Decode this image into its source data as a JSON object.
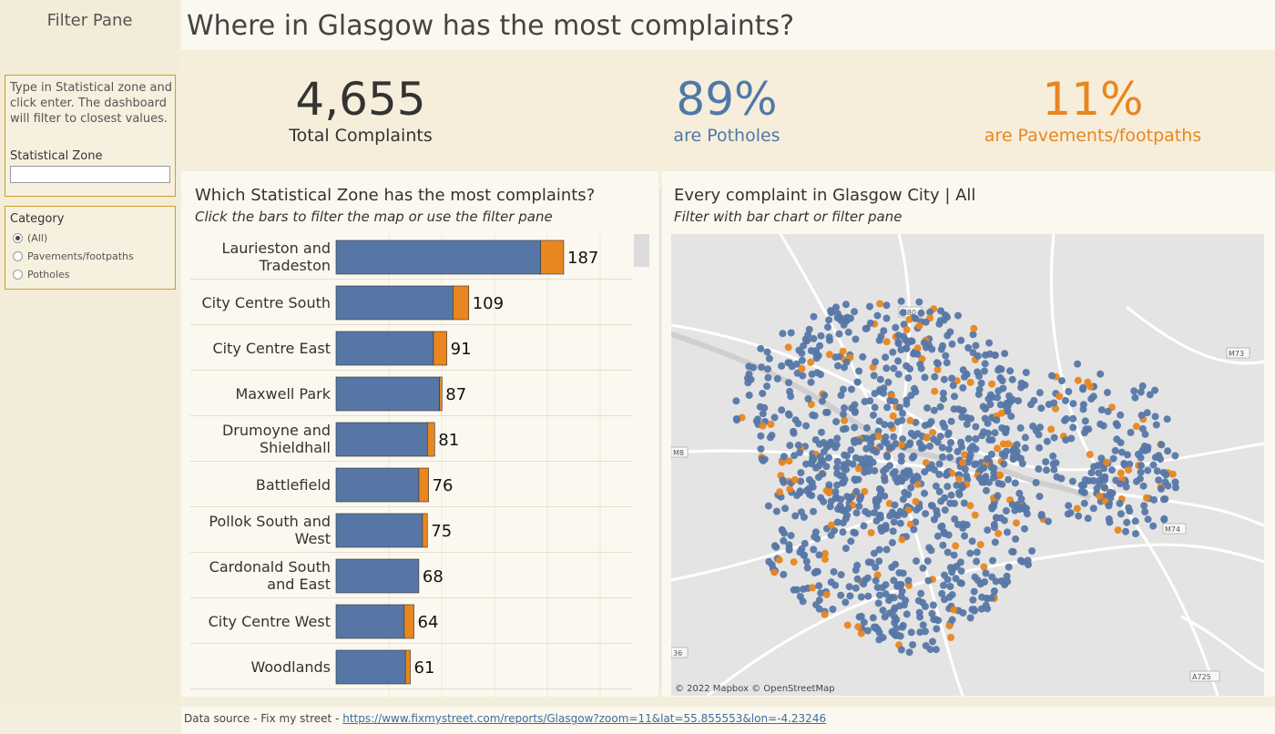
{
  "filter_pane": {
    "title": "Filter Pane",
    "zone_help": "Type in Statistical zone and click enter. The dashboard will filter to closest values.",
    "zone_label": "Statistical Zone",
    "zone_value": "",
    "category_label": "Category",
    "category_options": [
      "(All)",
      "Pavements/footpaths",
      "Potholes"
    ],
    "category_selected": "(All)"
  },
  "header": {
    "title": "Where in Glasgow has the most complaints?"
  },
  "kpis": [
    {
      "value": "4,655",
      "label": "Total Complaints",
      "color": "#333333"
    },
    {
      "value": "89%",
      "label": "are Potholes",
      "color": "#4e79a7"
    },
    {
      "value": "11%",
      "label": "are Pavements/footpaths",
      "color": "#e8861f"
    }
  ],
  "bar_panel": {
    "title": "Which Statistical Zone has the most complaints?",
    "subtitle": "Click the bars to filter the map or use the filter pane"
  },
  "map_panel": {
    "title": "Every complaint in Glasgow City | All",
    "subtitle": "Filter with bar chart or filter pane",
    "attribution": "© 2022 Mapbox © OpenStreetMap",
    "road_labels": [
      "M80",
      "M73",
      "M8",
      "M74",
      "A725",
      "36"
    ]
  },
  "footer": {
    "prefix": "Data source - Fix my street - ",
    "link": "https://www.fixmystreet.com/reports/Glasgow?zoom=11&lat=55.855553&lon=-4.23246"
  },
  "colors": {
    "potholes": "#5677a6",
    "pavements": "#e8861f"
  },
  "chart_data": {
    "type": "bar",
    "orientation": "horizontal",
    "stacked": true,
    "categories": [
      "Laurieston and Tradeston",
      "City Centre South",
      "City Centre East",
      "Maxwell Park",
      "Drumoyne and Shieldhall",
      "Battlefield",
      "Pollok South and West",
      "Cardonald South and East",
      "City Centre West",
      "Woodlands"
    ],
    "totals": [
      187,
      109,
      91,
      87,
      81,
      76,
      75,
      68,
      64,
      61
    ],
    "series": [
      {
        "name": "Potholes",
        "values": [
          168,
          96,
          80,
          85,
          75,
          68,
          71,
          68,
          56,
          57
        ]
      },
      {
        "name": "Pavements/footpaths",
        "values": [
          19,
          13,
          11,
          2,
          6,
          8,
          4,
          0,
          8,
          4
        ]
      }
    ],
    "xlim": [
      0,
      200
    ]
  }
}
